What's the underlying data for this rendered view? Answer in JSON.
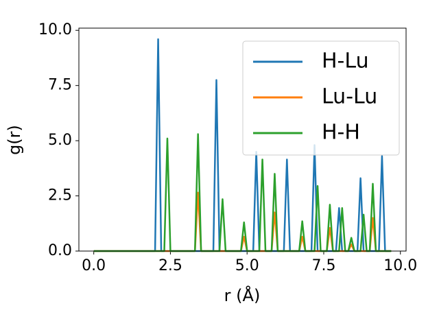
{
  "chart_data": {
    "type": "line",
    "x_label": "r (Å)",
    "y_label": "g(r)",
    "x": [
      0,
      2.0,
      2.1,
      2.2,
      2.3,
      2.4,
      2.5,
      3.3,
      3.4,
      3.5,
      3.9,
      4.0,
      4.1,
      4.2,
      4.3,
      4.8,
      4.9,
      5.0,
      5.2,
      5.3,
      5.4,
      5.5,
      5.6,
      5.8,
      5.9,
      6.0,
      6.2,
      6.3,
      6.4,
      6.7,
      6.8,
      6.9,
      7.1,
      7.2,
      7.3,
      7.4,
      7.6,
      7.7,
      7.8,
      7.9,
      8.0,
      8.1,
      8.2,
      8.3,
      8.4,
      8.5,
      8.6,
      8.7,
      8.8,
      8.9,
      9.0,
      9.1,
      9.2,
      9.3,
      9.4,
      9.5,
      9.7
    ],
    "series": [
      {
        "name": "H-Lu",
        "color": "#1f77b4",
        "values": [
          0,
          0,
          9.6,
          0,
          0,
          0,
          0,
          0,
          0,
          0,
          0,
          7.75,
          0,
          0,
          0,
          0,
          0,
          0,
          0,
          4.5,
          0,
          0,
          0,
          0,
          0,
          0,
          0,
          4.15,
          0,
          0,
          0,
          0,
          0,
          4.8,
          0,
          0,
          0,
          0,
          0,
          0,
          1.95,
          0,
          0,
          0,
          0,
          0,
          0,
          3.3,
          0,
          0,
          0,
          0,
          0,
          0,
          4.3,
          0,
          0
        ]
      },
      {
        "name": "Lu-Lu",
        "color": "#ff7f0e",
        "values": [
          0,
          0,
          0,
          0,
          0,
          0,
          0,
          0,
          2.65,
          0,
          0,
          0,
          0,
          0,
          0,
          0,
          0.65,
          0,
          0,
          0,
          0,
          0,
          0,
          0,
          1.75,
          0,
          0,
          0,
          0,
          0,
          0.65,
          0,
          0,
          0,
          0,
          0,
          0,
          1.05,
          0,
          0,
          0,
          0,
          0,
          0,
          0.3,
          0,
          0,
          0,
          0,
          0,
          0,
          1.5,
          0,
          0,
          0,
          0,
          0
        ]
      },
      {
        "name": "H-H",
        "color": "#2ca02c",
        "values": [
          0,
          0,
          0,
          0,
          0,
          5.1,
          0,
          0,
          5.3,
          0,
          0,
          0,
          0,
          2.35,
          0,
          0,
          1.3,
          0,
          0,
          0,
          0,
          4.15,
          0,
          0,
          3.5,
          0,
          0,
          0,
          0,
          0,
          1.35,
          0,
          0,
          0,
          2.95,
          0,
          0,
          2.1,
          0,
          0,
          0,
          1.95,
          0,
          0,
          0.6,
          0,
          0,
          0,
          1.65,
          0,
          0,
          3.05,
          0,
          0,
          0,
          0,
          0
        ]
      }
    ],
    "xlim": [
      -0.485,
      10.185
    ],
    "ylim": [
      0,
      10.1
    ],
    "xticks": [
      {
        "value": 0,
        "label": "0.0"
      },
      {
        "value": 2.5,
        "label": "2.5"
      },
      {
        "value": 5,
        "label": "5.0"
      },
      {
        "value": 7.5,
        "label": "7.5"
      },
      {
        "value": 10,
        "label": "10.0"
      }
    ],
    "yticks": [
      {
        "value": 0,
        "label": "0.0"
      },
      {
        "value": 2.5,
        "label": "2.5"
      },
      {
        "value": 5,
        "label": "5.0"
      },
      {
        "value": 7.5,
        "label": "7.5"
      },
      {
        "value": 10,
        "label": "10.0"
      }
    ],
    "legend": "upper right",
    "grid": false
  }
}
